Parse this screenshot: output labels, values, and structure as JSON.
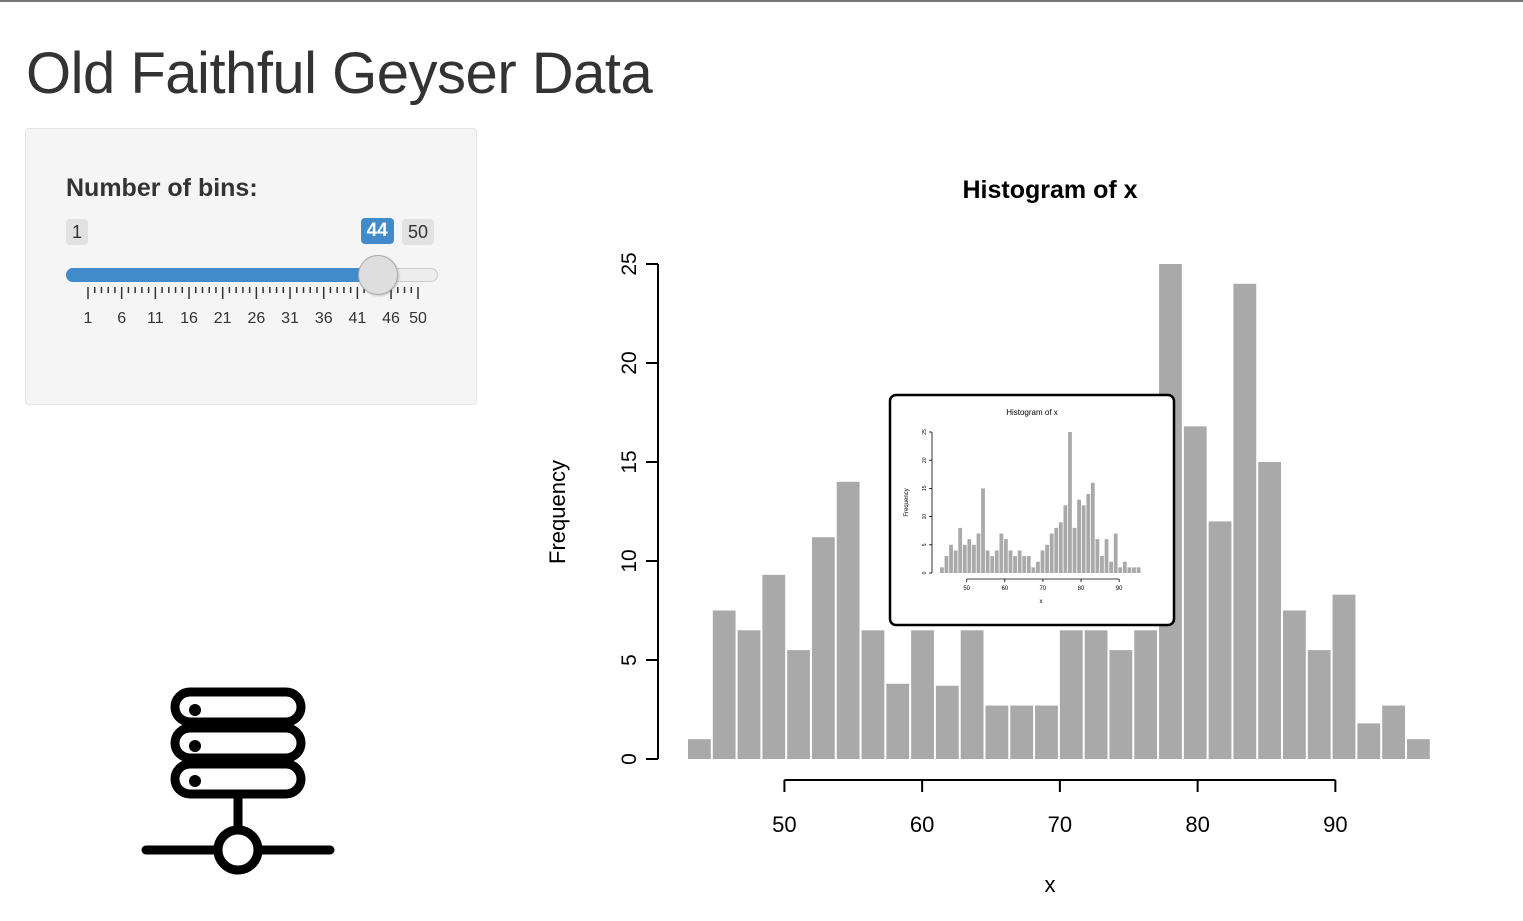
{
  "page": {
    "title": "Old Faithful Geyser Data"
  },
  "slider": {
    "label": "Number of bins:",
    "min": 1,
    "max": 50,
    "value": 44,
    "min_label": "1",
    "max_label": "50",
    "value_label": "44",
    "tick_labels": [
      "1",
      "6",
      "11",
      "16",
      "21",
      "26",
      "31",
      "36",
      "41",
      "46",
      "50"
    ],
    "accent_color": "#428bca"
  },
  "icons": {
    "server": "server-network-icon"
  },
  "chart_data": {
    "type": "bar",
    "title": "Histogram of x",
    "xlabel": "x",
    "ylabel": "Frequency",
    "xlim": [
      43,
      96
    ],
    "ylim": [
      0,
      25
    ],
    "x_ticks": [
      "50",
      "60",
      "70",
      "80",
      "90"
    ],
    "y_ticks": [
      "0",
      "5",
      "10",
      "15",
      "20",
      "25"
    ],
    "bin_start": 43,
    "bin_width": 1.8,
    "values": [
      1,
      7.5,
      6.5,
      9.3,
      5.5,
      11.2,
      14,
      6.5,
      3.8,
      6.5,
      3.7,
      6.5,
      2.7,
      2.7,
      2.7,
      6.5,
      6.5,
      5.5,
      6.5,
      25,
      16.8,
      12,
      24,
      15,
      7.5,
      5.5,
      8.3,
      1.8,
      2.7,
      1
    ],
    "bar_color": "#a9a9a9",
    "inset": {
      "title": "Histogram of x",
      "xlabel": "x",
      "ylabel": "Frequency",
      "x_ticks": [
        "50",
        "60",
        "70",
        "80",
        "90"
      ],
      "y_ticks": [
        "0",
        "5",
        "10",
        "15",
        "20",
        "25"
      ],
      "bin_start": 43,
      "bin_width": 1.2,
      "values": [
        1,
        3,
        5,
        4,
        8,
        5,
        6,
        5,
        7,
        15,
        4,
        3,
        4,
        7,
        6,
        4,
        3,
        4,
        3,
        3,
        1,
        2,
        4,
        5,
        7,
        8,
        9,
        12,
        25,
        8,
        13,
        12,
        14,
        16,
        6,
        3,
        6,
        2,
        7,
        1,
        2,
        1,
        1,
        1
      ],
      "ylim": [
        0,
        25
      ]
    }
  }
}
